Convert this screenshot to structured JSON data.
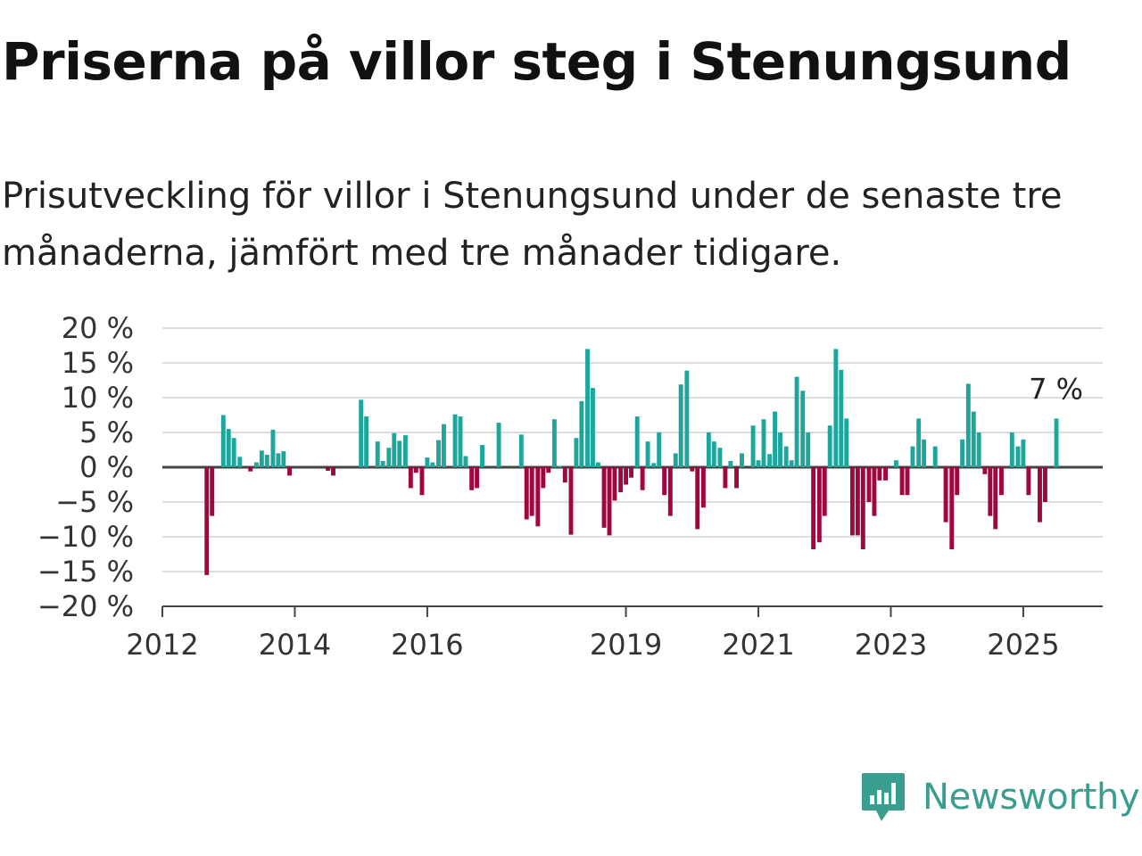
{
  "title": "Priserna på villor steg i Stenungsund",
  "subtitle": "Prisutveckling för villor i Stenungsund under de senaste tre månaderna, jämfört med tre månader tidigare.",
  "brand": {
    "name": "Newsworthy",
    "icon": "newsworthy-logo-icon",
    "color": "#3a9e8f"
  },
  "chart_data": {
    "type": "bar",
    "title": "Priserna på villor steg i Stenungsund",
    "xlabel": "",
    "ylabel": "",
    "y_unit": "%",
    "ylim": [
      -20,
      20
    ],
    "y_ticks": [
      {
        "value": 20,
        "label": "20 %"
      },
      {
        "value": 15,
        "label": "15 %"
      },
      {
        "value": 10,
        "label": "10 %"
      },
      {
        "value": 5,
        "label": "5 %"
      },
      {
        "value": 0,
        "label": "0 %"
      },
      {
        "value": -5,
        "label": "−5 %"
      },
      {
        "value": -10,
        "label": "−10 %"
      },
      {
        "value": -15,
        "label": "−15 %"
      },
      {
        "value": -20,
        "label": "−20 %"
      }
    ],
    "x_ticks": [
      {
        "value": 2012,
        "label": "2012"
      },
      {
        "value": 2014,
        "label": "2014"
      },
      {
        "value": 2016,
        "label": "2016"
      },
      {
        "value": 2019,
        "label": "2019"
      },
      {
        "value": 2021,
        "label": "2021"
      },
      {
        "value": 2023,
        "label": "2023"
      },
      {
        "value": 2025,
        "label": "2025"
      }
    ],
    "xlim": [
      2012,
      2026.2
    ],
    "grid": true,
    "colors": {
      "positive": "#1ea69b",
      "negative": "#a0063f",
      "grid": "#dddddd",
      "axis": "#444444"
    },
    "annotation": {
      "text": "7 %",
      "target": "last"
    },
    "series": [
      {
        "values": [
          {
            "x": 2012.67,
            "y": -15.5
          },
          {
            "x": 2012.75,
            "y": -7
          },
          {
            "x": 2012.92,
            "y": 7.5
          },
          {
            "x": 2013.0,
            "y": 5.5
          },
          {
            "x": 2013.08,
            "y": 4.2
          },
          {
            "x": 2013.17,
            "y": 1.5
          },
          {
            "x": 2013.33,
            "y": -0.6
          },
          {
            "x": 2013.42,
            "y": 0.7
          },
          {
            "x": 2013.5,
            "y": 2.4
          },
          {
            "x": 2013.58,
            "y": 1.8
          },
          {
            "x": 2013.67,
            "y": 5.4
          },
          {
            "x": 2013.75,
            "y": 2.0
          },
          {
            "x": 2013.83,
            "y": 2.3
          },
          {
            "x": 2013.92,
            "y": -1.2
          },
          {
            "x": 2014.5,
            "y": -0.5
          },
          {
            "x": 2014.58,
            "y": -1.2
          },
          {
            "x": 2015.0,
            "y": 9.7
          },
          {
            "x": 2015.08,
            "y": 7.3
          },
          {
            "x": 2015.25,
            "y": 3.7
          },
          {
            "x": 2015.33,
            "y": 0.9
          },
          {
            "x": 2015.42,
            "y": 2.8
          },
          {
            "x": 2015.5,
            "y": 4.9
          },
          {
            "x": 2015.58,
            "y": 3.8
          },
          {
            "x": 2015.67,
            "y": 4.6
          },
          {
            "x": 2015.75,
            "y": -3.0
          },
          {
            "x": 2015.83,
            "y": -0.8
          },
          {
            "x": 2015.92,
            "y": -4.0
          },
          {
            "x": 2016.0,
            "y": 1.4
          },
          {
            "x": 2016.08,
            "y": 0.7
          },
          {
            "x": 2016.17,
            "y": 3.9
          },
          {
            "x": 2016.25,
            "y": 6.2
          },
          {
            "x": 2016.42,
            "y": 7.6
          },
          {
            "x": 2016.5,
            "y": 7.3
          },
          {
            "x": 2016.58,
            "y": 1.6
          },
          {
            "x": 2016.67,
            "y": -3.3
          },
          {
            "x": 2016.75,
            "y": -3.0
          },
          {
            "x": 2016.83,
            "y": 3.2
          },
          {
            "x": 2017.08,
            "y": 6.4
          },
          {
            "x": 2017.42,
            "y": 4.7
          },
          {
            "x": 2017.5,
            "y": -7.5
          },
          {
            "x": 2017.58,
            "y": -7.0
          },
          {
            "x": 2017.67,
            "y": -8.5
          },
          {
            "x": 2017.75,
            "y": -3.0
          },
          {
            "x": 2017.83,
            "y": -0.8
          },
          {
            "x": 2017.92,
            "y": 6.9
          },
          {
            "x": 2018.0,
            "y": 0.2
          },
          {
            "x": 2018.08,
            "y": -2.2
          },
          {
            "x": 2018.17,
            "y": -9.7
          },
          {
            "x": 2018.25,
            "y": 4.2
          },
          {
            "x": 2018.33,
            "y": 9.5
          },
          {
            "x": 2018.42,
            "y": 17.0
          },
          {
            "x": 2018.5,
            "y": 11.4
          },
          {
            "x": 2018.58,
            "y": 0.7
          },
          {
            "x": 2018.67,
            "y": -8.7
          },
          {
            "x": 2018.75,
            "y": -9.8
          },
          {
            "x": 2018.83,
            "y": -4.8
          },
          {
            "x": 2018.92,
            "y": -3.6
          },
          {
            "x": 2019.0,
            "y": -2.5
          },
          {
            "x": 2019.08,
            "y": -1.5
          },
          {
            "x": 2019.17,
            "y": 7.3
          },
          {
            "x": 2019.25,
            "y": -3.3
          },
          {
            "x": 2019.33,
            "y": 3.7
          },
          {
            "x": 2019.42,
            "y": 0.6
          },
          {
            "x": 2019.5,
            "y": 5.0
          },
          {
            "x": 2019.58,
            "y": -4.0
          },
          {
            "x": 2019.67,
            "y": -7.0
          },
          {
            "x": 2019.75,
            "y": 2.0
          },
          {
            "x": 2019.83,
            "y": 11.9
          },
          {
            "x": 2019.92,
            "y": 13.9
          },
          {
            "x": 2020.0,
            "y": -0.6
          },
          {
            "x": 2020.08,
            "y": -8.9
          },
          {
            "x": 2020.17,
            "y": -5.8
          },
          {
            "x": 2020.25,
            "y": 5.0
          },
          {
            "x": 2020.33,
            "y": 3.7
          },
          {
            "x": 2020.42,
            "y": 2.8
          },
          {
            "x": 2020.5,
            "y": -3.0
          },
          {
            "x": 2020.58,
            "y": 0.9
          },
          {
            "x": 2020.67,
            "y": -3.0
          },
          {
            "x": 2020.75,
            "y": 2.0
          },
          {
            "x": 2020.92,
            "y": 6.0
          },
          {
            "x": 2021.0,
            "y": 1.0
          },
          {
            "x": 2021.08,
            "y": 6.9
          },
          {
            "x": 2021.17,
            "y": 1.9
          },
          {
            "x": 2021.25,
            "y": 8.0
          },
          {
            "x": 2021.33,
            "y": 5.0
          },
          {
            "x": 2021.42,
            "y": 3.0
          },
          {
            "x": 2021.5,
            "y": 1.0
          },
          {
            "x": 2021.58,
            "y": 13.0
          },
          {
            "x": 2021.67,
            "y": 11.0
          },
          {
            "x": 2021.75,
            "y": 5.0
          },
          {
            "x": 2021.83,
            "y": -11.8
          },
          {
            "x": 2021.92,
            "y": -10.8
          },
          {
            "x": 2022.0,
            "y": -7.0
          },
          {
            "x": 2022.08,
            "y": 6.0
          },
          {
            "x": 2022.17,
            "y": 17.0
          },
          {
            "x": 2022.25,
            "y": 14.0
          },
          {
            "x": 2022.33,
            "y": 7.0
          },
          {
            "x": 2022.42,
            "y": -9.8
          },
          {
            "x": 2022.5,
            "y": -9.8
          },
          {
            "x": 2022.58,
            "y": -11.8
          },
          {
            "x": 2022.67,
            "y": -5.0
          },
          {
            "x": 2022.75,
            "y": -7.0
          },
          {
            "x": 2022.83,
            "y": -1.9
          },
          {
            "x": 2022.92,
            "y": -1.9
          },
          {
            "x": 2023.08,
            "y": 1.0
          },
          {
            "x": 2023.17,
            "y": -4.0
          },
          {
            "x": 2023.25,
            "y": -4.0
          },
          {
            "x": 2023.33,
            "y": 3.0
          },
          {
            "x": 2023.42,
            "y": 7.0
          },
          {
            "x": 2023.5,
            "y": 4.0
          },
          {
            "x": 2023.67,
            "y": 3.0
          },
          {
            "x": 2023.83,
            "y": -7.9
          },
          {
            "x": 2023.92,
            "y": -11.8
          },
          {
            "x": 2024.0,
            "y": -4.0
          },
          {
            "x": 2024.08,
            "y": 4.0
          },
          {
            "x": 2024.17,
            "y": 12.0
          },
          {
            "x": 2024.25,
            "y": 8.0
          },
          {
            "x": 2024.33,
            "y": 5.0
          },
          {
            "x": 2024.42,
            "y": -1.0
          },
          {
            "x": 2024.5,
            "y": -7.0
          },
          {
            "x": 2024.58,
            "y": -8.9
          },
          {
            "x": 2024.67,
            "y": -4.0
          },
          {
            "x": 2024.83,
            "y": 5.0
          },
          {
            "x": 2024.92,
            "y": 3.0
          },
          {
            "x": 2025.0,
            "y": 4.0
          },
          {
            "x": 2025.08,
            "y": -4.0
          },
          {
            "x": 2025.25,
            "y": -7.9
          },
          {
            "x": 2025.33,
            "y": -5.0
          },
          {
            "x": 2025.5,
            "y": 7.0
          }
        ]
      }
    ]
  }
}
